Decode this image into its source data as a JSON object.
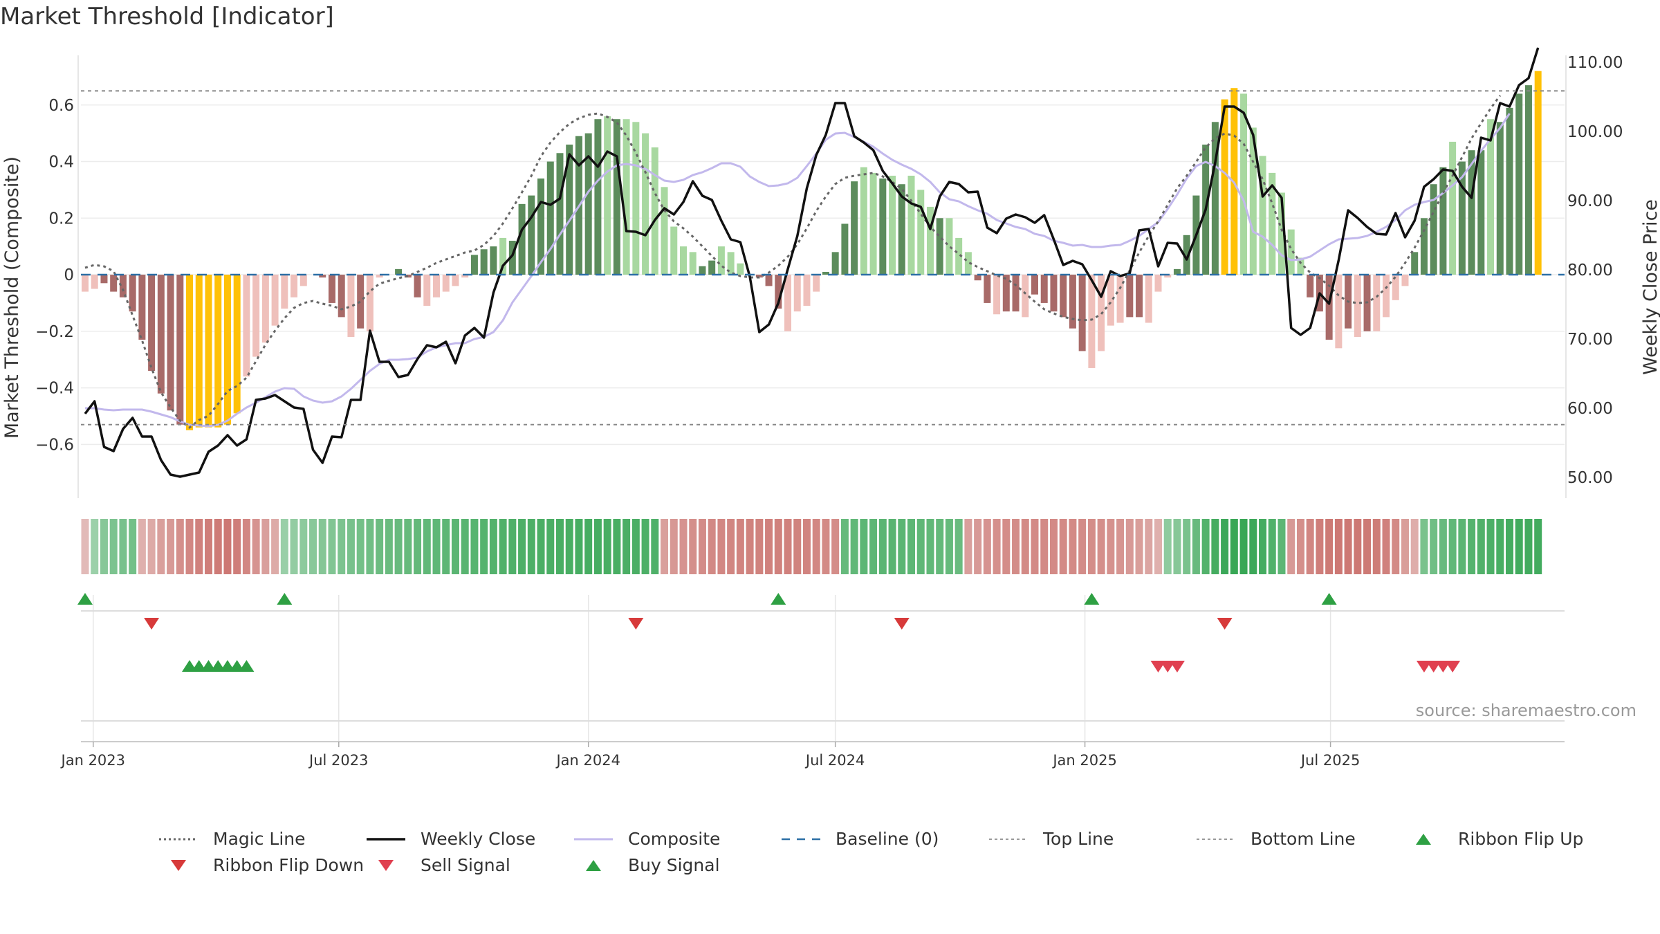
{
  "title": "Market Threshold [Indicator]",
  "source_note": "source: sharemaestro.com",
  "legend": [
    {
      "label": "Magic Line",
      "kind": "line",
      "color": "#666666",
      "dash": "3,4",
      "width": 3
    },
    {
      "label": "Weekly Close",
      "kind": "line",
      "color": "#111111",
      "dash": "",
      "width": 3.5
    },
    {
      "label": "Composite",
      "kind": "line",
      "color": "#c2b8ec",
      "dash": "",
      "width": 3
    },
    {
      "label": "Baseline (0)",
      "kind": "line",
      "color": "#2c6fa6",
      "dash": "12,10",
      "width": 2.5
    },
    {
      "label": "Top Line",
      "kind": "line",
      "color": "#999999",
      "dash": "4,4",
      "width": 2
    },
    {
      "label": "Bottom Line",
      "kind": "line",
      "color": "#999999",
      "dash": "4,4",
      "width": 2
    },
    {
      "label": "Ribbon Flip Up",
      "kind": "tri-up",
      "color": "#2ea043"
    },
    {
      "label": "Ribbon Flip Down",
      "kind": "tri-down",
      "color": "#d73a3a"
    },
    {
      "label": "Sell Signal",
      "kind": "tri-down",
      "color": "#e04050"
    },
    {
      "label": "Buy Signal",
      "kind": "tri-up",
      "color": "#2ea043"
    }
  ],
  "chart_data": {
    "type": "bar",
    "x_start": "2022-12-26",
    "x_step_days": 7,
    "xlabel": "",
    "ylabel": "Market Threshold (Composite)",
    "y2label": "Weekly Close Price",
    "ylim": [
      -0.79,
      0.8
    ],
    "y2lim": [
      47.0,
      112.0
    ],
    "yticks": [
      0.6,
      0.4,
      0.2,
      0,
      -0.2,
      -0.4,
      -0.6
    ],
    "ytick_labels": [
      "0.6",
      "0.4",
      "0.2",
      "0",
      "−0.2",
      "−0.4",
      "−0.6"
    ],
    "y2ticks": [
      110,
      100,
      90,
      80,
      70,
      60,
      50
    ],
    "y2tick_labels": [
      "110.00",
      "100.00",
      "90.00",
      "80.00",
      "70.00",
      "60.00",
      "50.00"
    ],
    "xtick_dates": [
      "2023-01-01",
      "2023-07-01",
      "2024-01-01",
      "2024-07-01",
      "2025-01-01",
      "2025-07-01"
    ],
    "xtick_labels": [
      "Jan 2023",
      "Jul 2023",
      "Jan 2024",
      "Jul 2024",
      "Jan 2025",
      "Jul 2025"
    ],
    "top_line": 0.65,
    "bottom_line": -0.53,
    "grid": true,
    "legend_position": "bottom",
    "colors": {
      "bar_pos_strong": "#5c8c5c",
      "bar_pos_weak": "#a8d8a0",
      "bar_neg_strong": "#a86a68",
      "bar_neg_weak": "#efc0bb",
      "bar_extreme": "#ffc107"
    },
    "bars": [
      -0.06,
      -0.05,
      -0.03,
      -0.06,
      -0.08,
      -0.13,
      -0.23,
      -0.34,
      -0.42,
      -0.48,
      -0.53,
      -0.55,
      -0.54,
      -0.54,
      -0.54,
      -0.53,
      -0.49,
      -0.36,
      -0.29,
      -0.24,
      -0.18,
      -0.12,
      -0.08,
      -0.04,
      0.0,
      -0.01,
      -0.1,
      -0.15,
      -0.22,
      -0.19,
      -0.2,
      -0.01,
      0.0,
      0.02,
      -0.01,
      -0.08,
      -0.11,
      -0.08,
      -0.06,
      -0.04,
      -0.01,
      0.07,
      0.09,
      0.1,
      0.13,
      0.12,
      0.25,
      0.28,
      0.34,
      0.4,
      0.43,
      0.46,
      0.49,
      0.5,
      0.55,
      0.56,
      0.55,
      0.55,
      0.54,
      0.5,
      0.45,
      0.31,
      0.17,
      0.1,
      0.08,
      0.03,
      0.05,
      0.1,
      0.08,
      0.04,
      0.0,
      -0.01,
      -0.04,
      -0.12,
      -0.2,
      -0.13,
      -0.11,
      -0.06,
      0.01,
      0.08,
      0.18,
      0.33,
      0.38,
      0.36,
      0.34,
      0.35,
      0.32,
      0.35,
      0.3,
      0.24,
      0.2,
      0.2,
      0.13,
      0.08,
      -0.02,
      -0.1,
      -0.14,
      -0.13,
      -0.13,
      -0.15,
      -0.07,
      -0.1,
      -0.13,
      -0.15,
      -0.19,
      -0.27,
      -0.33,
      -0.27,
      -0.18,
      -0.17,
      -0.15,
      -0.15,
      -0.17,
      -0.06,
      -0.01,
      0.02,
      0.14,
      0.28,
      0.46,
      0.54,
      0.62,
      0.66,
      0.64,
      0.52,
      0.42,
      0.36,
      0.29,
      0.16,
      0.06,
      -0.08,
      -0.13,
      -0.23,
      -0.26,
      -0.19,
      -0.22,
      -0.2,
      -0.2,
      -0.15,
      -0.09,
      -0.04,
      0.08,
      0.2,
      0.32,
      0.38,
      0.47,
      0.4,
      0.44,
      0.44,
      0.55,
      0.54,
      0.59,
      0.64,
      0.67,
      0.72
    ],
    "bar_extreme": [
      false,
      false,
      false,
      false,
      false,
      false,
      false,
      false,
      false,
      false,
      false,
      true,
      true,
      true,
      true,
      true,
      true,
      false,
      false,
      false,
      false,
      false,
      false,
      false,
      false,
      false,
      false,
      false,
      false,
      false,
      false,
      false,
      false,
      false,
      false,
      false,
      false,
      false,
      false,
      false,
      false,
      false,
      false,
      false,
      false,
      false,
      false,
      false,
      false,
      false,
      false,
      false,
      false,
      false,
      false,
      false,
      false,
      false,
      false,
      false,
      false,
      false,
      false,
      false,
      false,
      false,
      false,
      false,
      false,
      false,
      false,
      false,
      false,
      false,
      false,
      false,
      false,
      false,
      false,
      false,
      false,
      false,
      false,
      false,
      false,
      false,
      false,
      false,
      false,
      false,
      false,
      false,
      false,
      false,
      false,
      false,
      false,
      false,
      false,
      false,
      false,
      false,
      false,
      false,
      false,
      false,
      false,
      false,
      false,
      false,
      false,
      false,
      false,
      false,
      false,
      false,
      false,
      false,
      false,
      false,
      true,
      true,
      false,
      false,
      false,
      false,
      false,
      false,
      false,
      false,
      false,
      false,
      false,
      false,
      false,
      false,
      false,
      false,
      false,
      false,
      false,
      false,
      false,
      false,
      false,
      false,
      false,
      false,
      false,
      false,
      false,
      false,
      false,
      true,
      true,
      true
    ],
    "close": [
      59.2,
      61.0,
      54.4,
      53.8,
      57.0,
      58.6,
      55.9,
      55.9,
      52.5,
      50.4,
      50.1,
      50.4,
      50.7,
      53.7,
      54.6,
      56.1,
      54.6,
      55.5,
      61.2,
      61.4,
      61.9,
      61.0,
      60.1,
      59.9,
      54.0,
      52.1,
      55.9,
      55.8,
      61.2,
      61.2,
      71.2,
      66.7,
      66.7,
      64.5,
      64.8,
      67.1,
      69.1,
      68.8,
      69.6,
      66.5,
      70.5,
      71.6,
      70.2,
      76.7,
      80.6,
      82.1,
      85.8,
      87.6,
      89.8,
      89.4,
      90.3,
      96.7,
      95.1,
      96.4,
      94.9,
      97.1,
      96.4,
      85.6,
      85.5,
      85.0,
      87.2,
      88.9,
      88.0,
      89.8,
      92.8,
      90.7,
      90.1,
      87.1,
      84.4,
      84.0,
      79.0,
      71.0,
      72.1,
      75.2,
      80.1,
      84.9,
      91.8,
      96.6,
      99.5,
      104.1,
      104.1,
      99.3,
      98.4,
      97.3,
      94.3,
      92.5,
      90.6,
      89.6,
      89.1,
      85.9,
      90.6,
      92.7,
      92.4,
      91.2,
      91.3,
      86.1,
      85.3,
      87.4,
      88.0,
      87.6,
      86.8,
      87.9,
      84.4,
      80.7,
      81.3,
      80.8,
      78.5,
      76.1,
      79.8,
      79.1,
      79.5,
      85.7,
      85.9,
      80.5,
      83.9,
      83.8,
      81.5,
      85.0,
      88.7,
      95.5,
      103.6,
      103.6,
      102.7,
      99.5,
      90.6,
      92.2,
      90.4,
      71.6,
      70.6,
      71.6,
      76.6,
      75.1,
      81.4,
      88.6,
      87.5,
      86.2,
      85.2,
      85.1,
      88.2,
      84.7,
      87.1,
      92.0,
      93.1,
      94.5,
      94.3,
      92.0,
      90.4,
      99.1,
      98.7,
      104.1,
      103.6,
      106.7,
      107.7,
      112.1
    ],
    "composite": [
      60.0,
      60.0,
      59.8,
      59.7,
      59.8,
      59.8,
      59.8,
      59.5,
      59.1,
      58.7,
      58.1,
      57.6,
      57.5,
      57.4,
      57.6,
      58.2,
      59.2,
      60.1,
      60.8,
      61.6,
      62.4,
      62.9,
      62.8,
      61.7,
      61.1,
      60.8,
      61.0,
      61.7,
      62.8,
      64.1,
      65.4,
      66.4,
      67.0,
      67.0,
      67.1,
      67.3,
      68.2,
      68.8,
      69.1,
      69.4,
      69.4,
      70.0,
      70.3,
      71.0,
      72.7,
      75.3,
      77.2,
      79.1,
      81.1,
      83.0,
      85.1,
      87.1,
      89.2,
      91.3,
      92.9,
      94.2,
      95.1,
      95.3,
      95.1,
      94.6,
      93.7,
      92.9,
      92.7,
      93.0,
      93.7,
      94.1,
      94.7,
      95.4,
      95.4,
      94.9,
      93.5,
      92.7,
      92.1,
      92.2,
      92.5,
      93.3,
      95.0,
      96.8,
      98.8,
      99.7,
      99.8,
      99.2,
      98.5,
      97.8,
      96.8,
      95.9,
      95.2,
      94.6,
      93.8,
      92.7,
      91.2,
      90.2,
      89.9,
      89.2,
      88.6,
      88.1,
      87.2,
      86.7,
      86.2,
      85.9,
      85.2,
      84.9,
      84.2,
      83.9,
      83.5,
      83.6,
      83.3,
      83.3,
      83.5,
      83.6,
      84.2,
      84.9,
      85.9,
      86.9,
      88.8,
      90.9,
      93.2,
      95.0,
      95.6,
      95.0,
      94.0,
      92.6,
      90.0,
      85.5,
      84.8,
      83.6,
      82.1,
      81.4,
      81.5,
      81.9,
      82.8,
      83.7,
      84.4,
      84.5,
      84.6,
      84.9,
      85.5,
      86.2,
      87.2,
      88.6,
      89.4,
      89.8,
      90.1,
      91.1,
      92.2,
      93.4,
      95.3,
      97.2,
      98.9,
      100.5,
      102.6
    ],
    "magic": [
      80.3,
      80.7,
      80.5,
      79.8,
      77.1,
      73.4,
      69.8,
      65.8,
      62.3,
      60.1,
      58.2,
      57.2,
      58.3,
      58.9,
      60.6,
      62.5,
      63.2,
      64.4,
      66.8,
      69.2,
      71.2,
      73.0,
      74.5,
      75.2,
      75.5,
      75.1,
      74.8,
      74.3,
      74.7,
      75.4,
      76.9,
      78.0,
      78.4,
      78.8,
      79.1,
      79.7,
      80.3,
      81.0,
      81.5,
      82.0,
      82.5,
      82.8,
      83.6,
      84.9,
      86.7,
      88.9,
      91.2,
      93.6,
      96.4,
      98.4,
      99.9,
      101.1,
      101.9,
      102.4,
      102.6,
      102.1,
      101.3,
      99.4,
      96.9,
      94.1,
      91.1,
      88.6,
      87.0,
      86.0,
      84.8,
      83.4,
      82.0,
      80.6,
      79.6,
      79.1,
      78.9,
      78.9,
      79.6,
      80.6,
      81.9,
      83.7,
      86.0,
      88.5,
      90.6,
      92.4,
      93.3,
      93.6,
      93.8,
      94.0,
      93.5,
      92.7,
      91.7,
      90.0,
      88.1,
      86.2,
      84.8,
      83.4,
      82.3,
      81.1,
      80.4,
      79.8,
      79.2,
      78.7,
      77.8,
      76.6,
      75.4,
      74.3,
      73.7,
      73.2,
      72.9,
      72.7,
      72.8,
      73.6,
      75.3,
      77.4,
      79.9,
      82.5,
      84.9,
      87.0,
      89.4,
      91.8,
      93.6,
      95.6,
      97.7,
      99.0,
      99.7,
      99.4,
      98.2,
      95.6,
      93.1,
      89.6,
      85.8,
      83.0,
      81.0,
      79.6,
      78.8,
      77.7,
      76.3,
      75.4,
      75.2,
      75.3,
      76.1,
      77.4,
      79.0,
      81.0,
      83.2,
      85.7,
      88.4,
      91.1,
      93.6,
      96.3,
      99.0,
      101.2,
      103.3,
      105.2
    ],
    "ribbon": [
      -0.16,
      0.2,
      0.3,
      0.35,
      0.37,
      0.39,
      -0.23,
      -0.27,
      -0.34,
      -0.38,
      -0.45,
      -0.5,
      -0.54,
      -0.56,
      -0.58,
      -0.6,
      -0.56,
      -0.5,
      -0.42,
      -0.34,
      -0.26,
      0.21,
      0.24,
      0.27,
      0.29,
      0.31,
      0.33,
      0.35,
      0.37,
      0.39,
      0.41,
      0.43,
      0.44,
      0.45,
      0.46,
      0.47,
      0.48,
      0.49,
      0.5,
      0.51,
      0.52,
      0.53,
      0.54,
      0.55,
      0.56,
      0.57,
      0.58,
      0.58,
      0.59,
      0.59,
      0.6,
      0.6,
      0.61,
      0.61,
      0.61,
      0.6,
      0.6,
      0.59,
      0.59,
      0.58,
      0.57,
      -0.34,
      -0.39,
      -0.42,
      -0.45,
      -0.47,
      -0.49,
      -0.5,
      -0.51,
      -0.52,
      -0.53,
      -0.53,
      -0.54,
      -0.54,
      -0.54,
      -0.53,
      -0.52,
      -0.5,
      -0.48,
      -0.46,
      0.46,
      0.48,
      0.5,
      0.5,
      0.51,
      0.52,
      0.51,
      0.5,
      0.49,
      0.48,
      0.47,
      0.46,
      0.44,
      -0.34,
      -0.38,
      -0.42,
      -0.44,
      -0.46,
      -0.47,
      -0.48,
      -0.48,
      -0.48,
      -0.48,
      -0.48,
      -0.48,
      -0.47,
      -0.46,
      -0.45,
      -0.43,
      -0.41,
      -0.38,
      -0.35,
      -0.3,
      -0.23,
      0.26,
      0.3,
      0.36,
      0.45,
      0.55,
      0.62,
      0.66,
      0.68,
      0.68,
      0.66,
      0.62,
      0.56,
      0.5,
      -0.38,
      -0.45,
      -0.51,
      -0.56,
      -0.59,
      -0.6,
      -0.6,
      -0.6,
      -0.59,
      -0.57,
      -0.54,
      -0.48,
      -0.35,
      -0.25,
      0.36,
      0.41,
      0.45,
      0.48,
      0.51,
      0.54,
      0.56,
      0.58,
      0.6,
      0.62,
      0.63,
      0.63,
      0.63
    ],
    "ribbon_flip_up": [
      "2022-12-26",
      "2023-05-22",
      "2024-05-20",
      "2025-01-06",
      "2025-06-30"
    ],
    "ribbon_flip_down": [
      "2023-02-13",
      "2024-02-05",
      "2024-08-19",
      "2025-04-14"
    ],
    "buy_signal": [
      "2023-03-13",
      "2023-03-20",
      "2023-03-27",
      "2023-04-03",
      "2023-04-10",
      "2023-04-17",
      "2023-04-24"
    ],
    "sell_signal": [
      "2025-02-24",
      "2025-03-03",
      "2025-03-10",
      "2025-09-08",
      "2025-09-15",
      "2025-09-22",
      "2025-09-29"
    ]
  }
}
